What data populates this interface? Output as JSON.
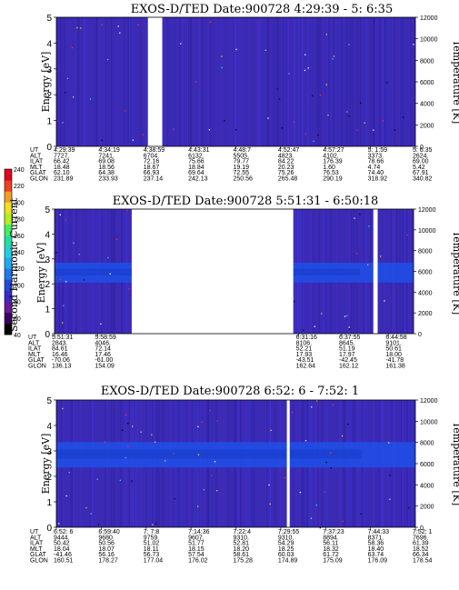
{
  "chart_data": [
    {
      "type": "heatmap",
      "title": "EXOS-D/TED   Date:900728  4:29:39 - 5: 6:35",
      "ylabel": "Energy [eV]",
      "y2label": "Temperature [K]",
      "ylim": [
        0,
        5
      ],
      "y2lim": [
        0,
        12000
      ],
      "yticks": [
        "0",
        "1",
        "2",
        "3",
        "4",
        "5"
      ],
      "y2ticks": [
        "0",
        "2000",
        "4000",
        "6000",
        "8000",
        "10000",
        "12000"
      ],
      "gaps": [
        [
          0.255,
          0.295
        ]
      ],
      "band": null,
      "ephem_labels": [
        "UT",
        "ALT",
        "ILAT",
        "MLT",
        "GLAT",
        "GLON"
      ],
      "ephem_columns": [
        [
          "4:29:39",
          "7727.",
          "66.42",
          "18.48",
          "62.10",
          "231.89"
        ],
        [
          "4:34:19",
          "7241.",
          "69.08",
          "18.56",
          "64.38",
          "233.93"
        ],
        [
          "4:38:59",
          "6704.",
          "72.16",
          "18.67",
          "66.93",
          "237.14"
        ],
        [
          "4:43:31",
          "6132.",
          "75.66",
          "18.84",
          "69.64",
          "242.13"
        ],
        [
          "4:48:7",
          "5505.",
          "79.77",
          "19.19",
          "72.55",
          "250.56"
        ],
        [
          "4:52:47",
          "4823.",
          "84.22",
          "20.23",
          "75.26",
          "265.48"
        ],
        [
          "4:57:27",
          "4102.",
          "176.39",
          "1.60",
          "76.53",
          "290.19"
        ],
        [
          "5: 1:59",
          "3373.",
          "78.66",
          "4.74",
          "74.40",
          "318.92"
        ],
        [
          "5: 6:35",
          "2624.",
          "69.00",
          "5.42",
          "67.91",
          "340.82"
        ]
      ]
    },
    {
      "type": "heatmap",
      "title": "EXOS-D/TED   Date:900728  5:51:31 - 6:50:18",
      "ylabel": "Energy [eV]",
      "y2label": "Temperature [K]",
      "ylim": [
        0,
        5
      ],
      "y2lim": [
        0,
        12000
      ],
      "yticks": [
        "0",
        "1",
        "2",
        "3",
        "4",
        "5"
      ],
      "y2ticks": [
        "0",
        "2000",
        "4000",
        "6000",
        "8000",
        "10000",
        "12000"
      ],
      "gaps": [
        [
          0.215,
          0.665
        ],
        [
          0.888,
          0.9
        ]
      ],
      "band": [
        2.05,
        2.85
      ],
      "ephem_labels": [
        "UT",
        "ALT",
        "ILAT",
        "MLT",
        "GLAT",
        "GLON"
      ],
      "ephem_columns": [
        [
          "5:51:31",
          "2843.",
          "84.61",
          "16.46",
          "-70.06",
          "136.13"
        ],
        [
          "5:58:59",
          "4046.",
          "72.14",
          "17.46",
          "-61.00",
          "154.09"
        ],
        [
          "6:31:16",
          "8106.",
          "52.21",
          "17.93",
          "-43.51",
          "162.64"
        ],
        [
          "6:37:55",
          "8645.",
          "51.19",
          "17.97",
          "-42.45",
          "162.12"
        ],
        [
          "6:44:58",
          "9101.",
          "50.61",
          "18.00",
          "-41.78",
          "161.38"
        ]
      ]
    },
    {
      "type": "heatmap",
      "title": "EXOS-D/TED   Date:900728  6:52: 6 - 7:52: 1",
      "ylabel": "Energy [eV]",
      "y2label": "Temperature [K]",
      "ylim": [
        0,
        5
      ],
      "y2lim": [
        0,
        12000
      ],
      "yticks": [
        "0",
        "1",
        "2",
        "3",
        "4",
        "5"
      ],
      "y2ticks": [
        "0",
        "2000",
        "4000",
        "6000",
        "8000",
        "10000",
        "12000"
      ],
      "gaps": [
        [
          0.642,
          0.65
        ]
      ],
      "band": [
        2.35,
        3.35
      ],
      "ephem_labels": [
        "UT",
        "ALT",
        "ILAT",
        "MLT",
        "GLAT",
        "GLON"
      ],
      "ephem_columns": [
        [
          "6:52: 6",
          "9444.",
          "50.42",
          "18.04",
          "-41.46",
          "160.51"
        ],
        [
          "6:59:40",
          "9680.",
          "50.56",
          "18.07",
          "56.16",
          "178.27"
        ],
        [
          "7: 7:8",
          "9759.",
          "51.02",
          "18.11",
          "56.73",
          "177.04"
        ],
        [
          "7:14:36",
          "9607.",
          "51.77",
          "18.15",
          "57.54",
          "176.02"
        ],
        [
          "7:22:4",
          "9310.",
          "52.81",
          "18.20",
          "58.61",
          "175.28"
        ],
        [
          "7:29:55",
          "9310.",
          "54.29",
          "18.25",
          "60.03",
          "174.89"
        ],
        [
          "7:37:23",
          "8894.",
          "56.11",
          "18.32",
          "61.72",
          "175.09"
        ],
        [
          "7:44:33",
          "8371.",
          "58.36",
          "18.40",
          "63.74",
          "176.09"
        ],
        [
          "7:52: 1",
          "7696.",
          "61.39",
          "18.52",
          "66.34",
          "178.54"
        ]
      ]
    }
  ],
  "colorbar": {
    "label": "Second Harmonic Current",
    "ticks": [
      "40",
      "60",
      "80",
      "100",
      "120",
      "140",
      "160",
      "180",
      "200",
      "220",
      "240"
    ],
    "colors": [
      "#000000",
      "#3a0060",
      "#6a1a9a",
      "#3a2acc",
      "#1f4ae0",
      "#1f7ae8",
      "#20a8f0",
      "#1fd0e0",
      "#20e0a0",
      "#40f060",
      "#b0f020",
      "#f0e020",
      "#f0a020",
      "#f04020",
      "#e00020"
    ]
  },
  "colors": {
    "background_field": "#3a2ab4",
    "band_color": "#1e50e8",
    "gap_color": "#ffffff"
  }
}
